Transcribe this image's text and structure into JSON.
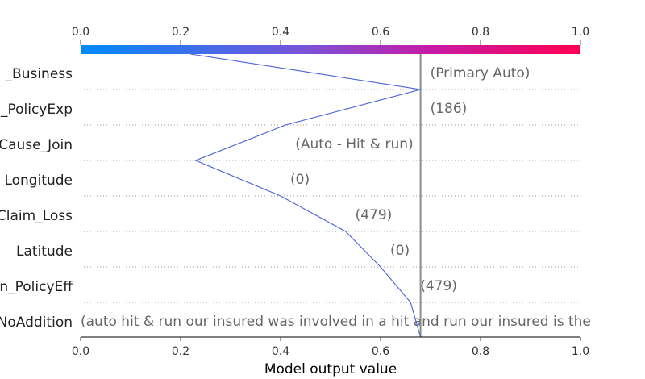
{
  "chart_data": {
    "type": "line",
    "title": "",
    "xlabel": "Model output value",
    "ylabel": "",
    "xlim": [
      0.0,
      1.0
    ],
    "x_ticks": [
      "0.0",
      "0.2",
      "0.4",
      "0.6",
      "0.8",
      "1.0"
    ],
    "colorbar": {
      "from_color": "#008bfb",
      "to_color": "#ff0052"
    },
    "expected_value": 0.68,
    "grid": "dotted row separators",
    "features": [
      {
        "label": "_Business",
        "value_label": "(Primary Auto)"
      },
      {
        "label": "_PolicyExp",
        "value_label": "(186)"
      },
      {
        "label": "Cause_Join",
        "value_label": "(Auto - Hit & run)"
      },
      {
        "label": "Longitude",
        "value_label": "(0)"
      },
      {
        "label": "Claim_Loss",
        "value_label": "(479)"
      },
      {
        "label": "Latitude",
        "value_label": "(0)"
      },
      {
        "label": "n_PolicyEff",
        "value_label": "(479)"
      },
      {
        "label": "NoAddition",
        "value_label": "(auto   hit & run   our insured was involved in a hit and run  our insured is the"
      }
    ],
    "path_x": [
      0.22,
      0.68,
      0.41,
      0.23,
      0.4,
      0.53,
      0.6,
      0.66,
      0.68
    ],
    "line_color": "#4a62d8"
  }
}
